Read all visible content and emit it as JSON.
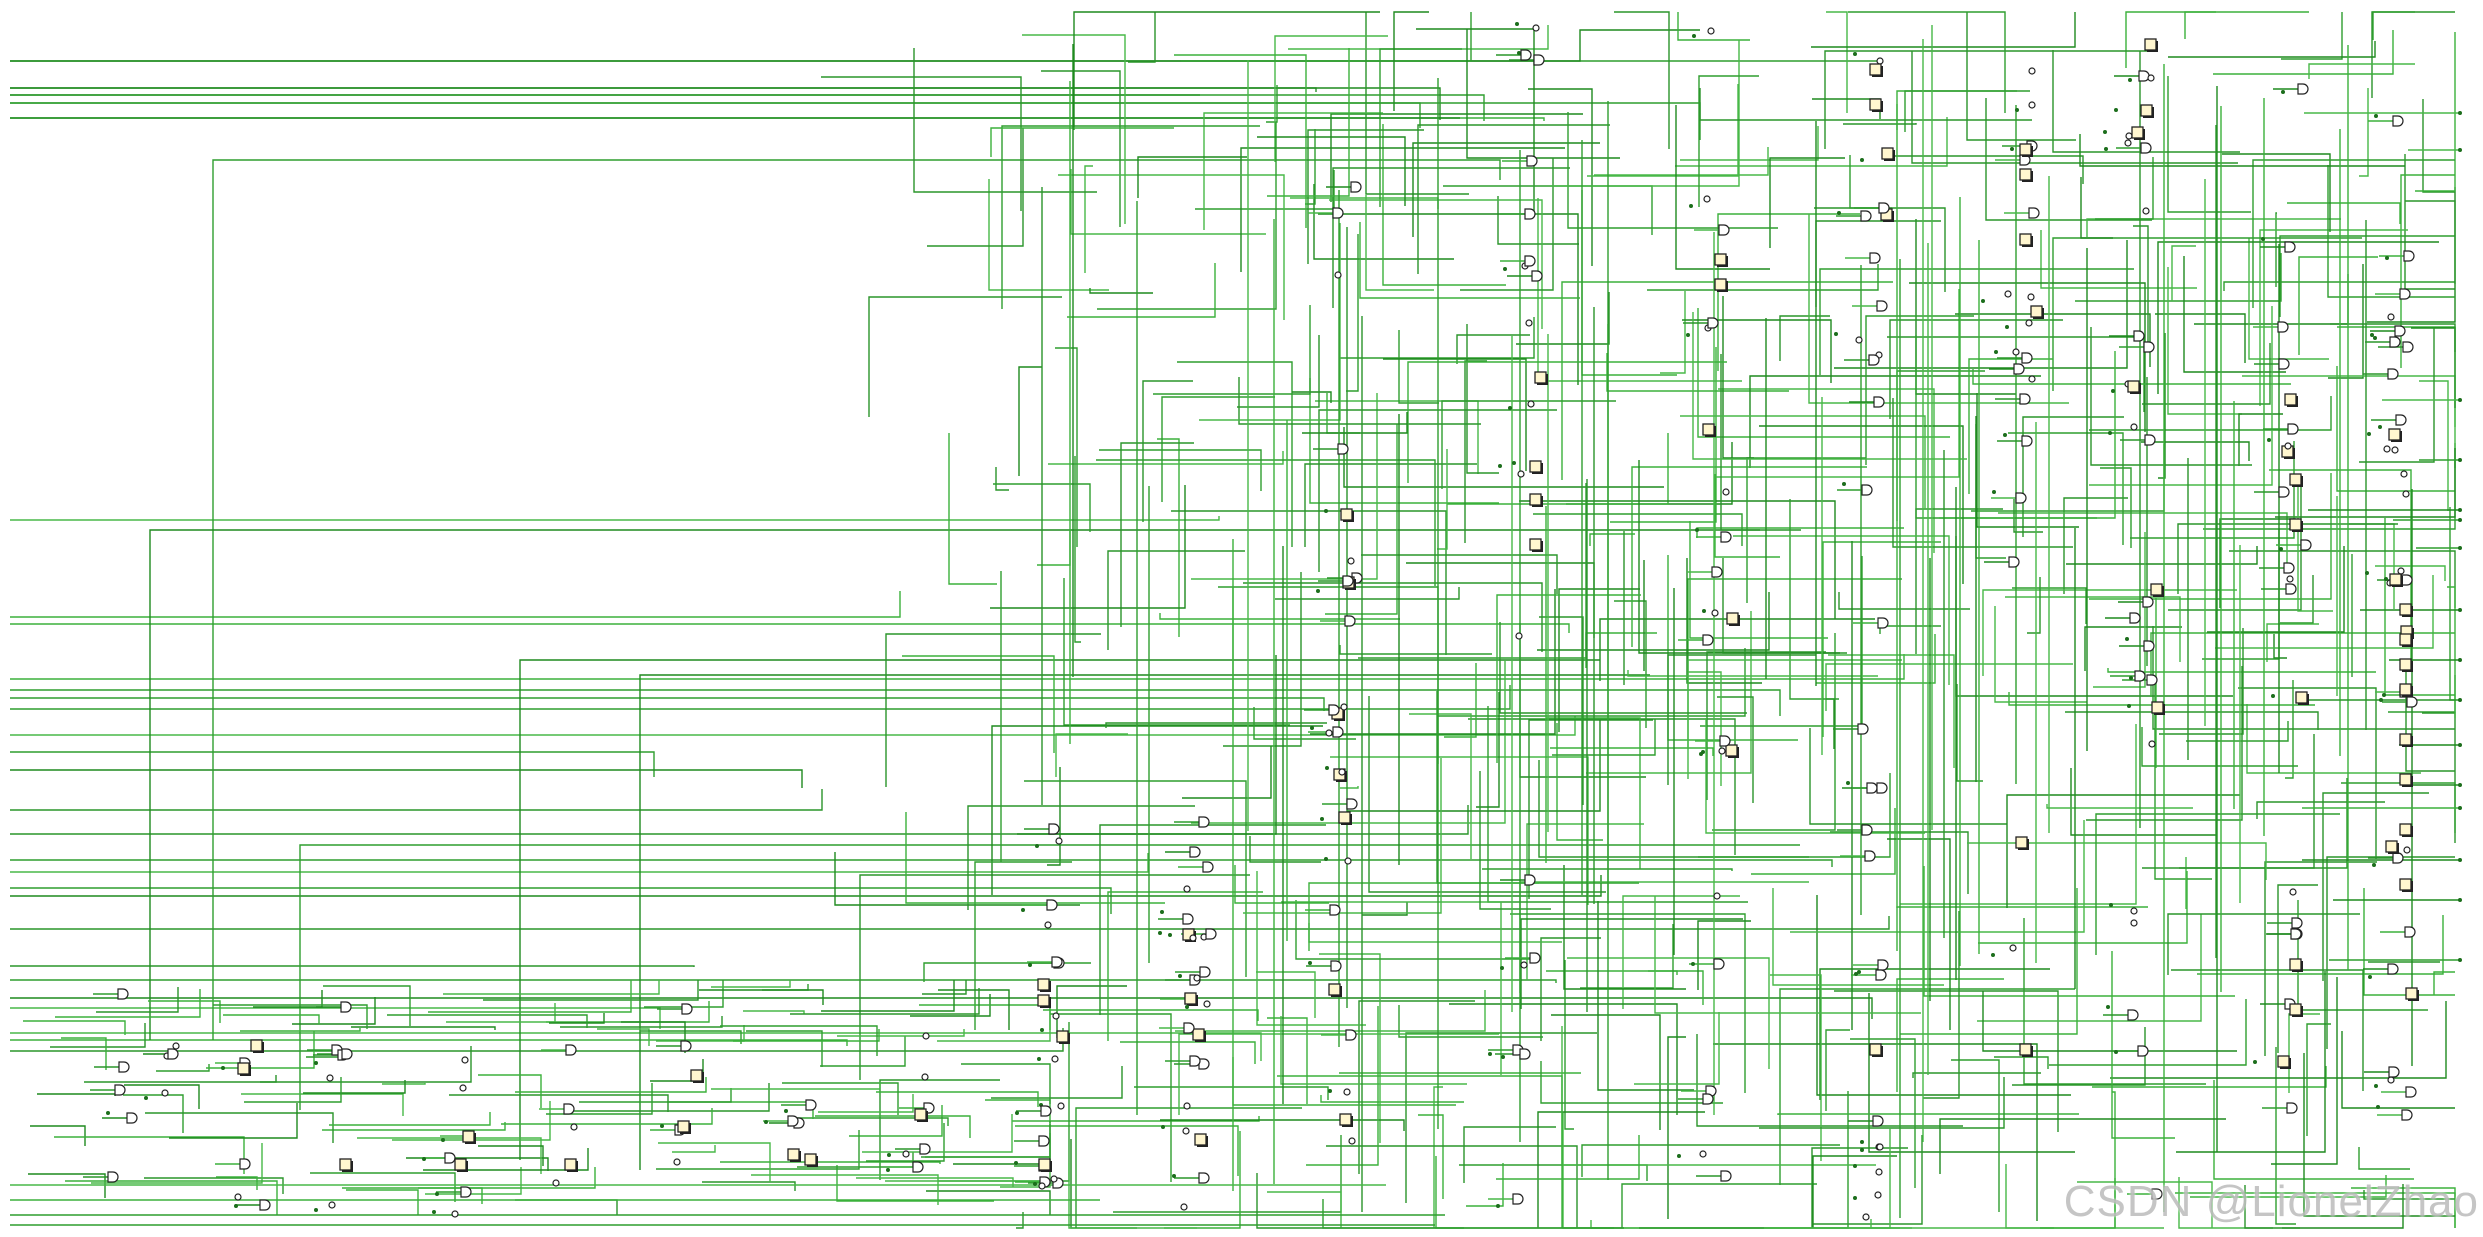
{
  "watermark": "CSDN @LionelZhao"
}
